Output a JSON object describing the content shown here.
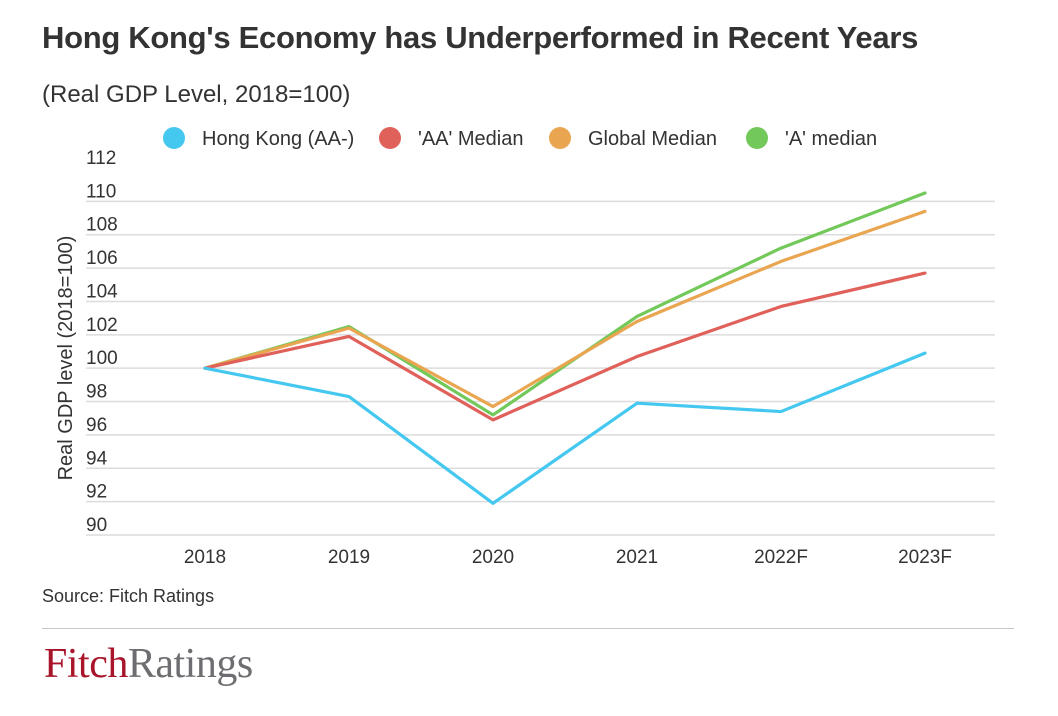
{
  "chart_data": {
    "type": "line",
    "title": "Hong Kong's Economy has Underperformed in Recent Years",
    "subtitle": "(Real GDP Level, 2018=100)",
    "ylabel": "Real GDP level (2018=100)",
    "xlabel": "",
    "categories": [
      "2018",
      "2019",
      "2020",
      "2021",
      "2022F",
      "2023F"
    ],
    "ylim": [
      90,
      112
    ],
    "yticks": [
      90,
      92,
      94,
      96,
      98,
      100,
      102,
      104,
      106,
      108,
      110,
      112
    ],
    "grid": true,
    "legend_position": "top",
    "series": [
      {
        "name": "Hong Kong (AA-)",
        "color": "#44c8f0",
        "values": [
          100.0,
          98.3,
          91.9,
          97.9,
          97.4,
          100.9
        ]
      },
      {
        "name": "'AA' Median",
        "color": "#e0605a",
        "values": [
          100.0,
          101.9,
          96.9,
          100.7,
          103.7,
          105.7
        ]
      },
      {
        "name": "Global Median",
        "color": "#e9a54f",
        "values": [
          100.0,
          102.4,
          97.7,
          102.8,
          106.4,
          109.4
        ]
      },
      {
        "name": "'A' median",
        "color": "#72c95a",
        "values": [
          100.0,
          102.5,
          97.2,
          103.1,
          107.2,
          110.5
        ]
      }
    ]
  },
  "footer": {
    "source": "Source: Fitch Ratings",
    "logo_part1": "Fitch",
    "logo_part2": "Ratings"
  }
}
